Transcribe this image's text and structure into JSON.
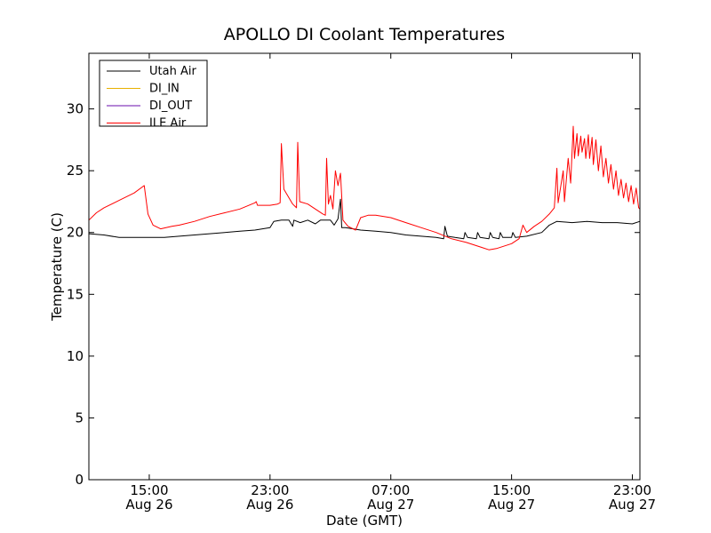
{
  "chart_data": {
    "type": "line",
    "title": "APOLLO DI Coolant Temperatures",
    "xlabel": "Date (GMT)",
    "ylabel": "Temperature (C)",
    "ylim": [
      0,
      34.5
    ],
    "xlim": [
      "2016-08-26T11:00",
      "2016-08-27T23:30"
    ],
    "yticks": [
      0,
      5,
      10,
      15,
      20,
      25,
      30
    ],
    "xticks": [
      {
        "at": "2016-08-26T15:00",
        "time": "15:00",
        "date": "Aug 26"
      },
      {
        "at": "2016-08-26T23:00",
        "time": "23:00",
        "date": "Aug 26"
      },
      {
        "at": "2016-08-27T07:00",
        "time": "07:00",
        "date": "Aug 27"
      },
      {
        "at": "2016-08-27T15:00",
        "time": "15:00",
        "date": "Aug 27"
      },
      {
        "at": "2016-08-27T23:00",
        "time": "23:00",
        "date": "Aug 27"
      }
    ],
    "grid": false,
    "legend_position": "top-left",
    "series": [
      {
        "name": "Utah Air",
        "color": "#000000",
        "points": [
          [
            "2016-08-26T11:00",
            19.9
          ],
          [
            "2016-08-26T12:00",
            19.8
          ],
          [
            "2016-08-26T13:00",
            19.6
          ],
          [
            "2016-08-26T14:00",
            19.6
          ],
          [
            "2016-08-26T15:00",
            19.6
          ],
          [
            "2016-08-26T16:00",
            19.6
          ],
          [
            "2016-08-26T17:00",
            19.7
          ],
          [
            "2016-08-26T18:00",
            19.8
          ],
          [
            "2016-08-26T19:00",
            19.9
          ],
          [
            "2016-08-26T20:00",
            20.0
          ],
          [
            "2016-08-26T21:00",
            20.1
          ],
          [
            "2016-08-26T22:00",
            20.2
          ],
          [
            "2016-08-26T23:00",
            20.4
          ],
          [
            "2016-08-26T23:15",
            20.9
          ],
          [
            "2016-08-26T23:45",
            21.0
          ],
          [
            "2016-08-27T00:15",
            21.0
          ],
          [
            "2016-08-27T00:30",
            20.5
          ],
          [
            "2016-08-27T00:35",
            21.0
          ],
          [
            "2016-08-27T01:00",
            20.8
          ],
          [
            "2016-08-27T01:30",
            21.0
          ],
          [
            "2016-08-27T02:00",
            20.7
          ],
          [
            "2016-08-27T02:20",
            21.0
          ],
          [
            "2016-08-27T03:00",
            21.0
          ],
          [
            "2016-08-27T03:15",
            20.6
          ],
          [
            "2016-08-27T03:30",
            21.1
          ],
          [
            "2016-08-27T03:40",
            22.7
          ],
          [
            "2016-08-27T03:45",
            20.4
          ],
          [
            "2016-08-27T04:00",
            20.4
          ],
          [
            "2016-08-27T05:00",
            20.2
          ],
          [
            "2016-08-27T06:00",
            20.1
          ],
          [
            "2016-08-27T07:00",
            20.0
          ],
          [
            "2016-08-27T08:00",
            19.8
          ],
          [
            "2016-08-27T09:00",
            19.7
          ],
          [
            "2016-08-27T10:00",
            19.6
          ],
          [
            "2016-08-27T10:30",
            19.5
          ],
          [
            "2016-08-27T10:35",
            20.5
          ],
          [
            "2016-08-27T10:45",
            19.7
          ],
          [
            "2016-08-27T11:15",
            19.6
          ],
          [
            "2016-08-27T11:50",
            19.5
          ],
          [
            "2016-08-27T11:55",
            20.0
          ],
          [
            "2016-08-27T12:05",
            19.6
          ],
          [
            "2016-08-27T12:40",
            19.5
          ],
          [
            "2016-08-27T12:45",
            20.0
          ],
          [
            "2016-08-27T12:55",
            19.6
          ],
          [
            "2016-08-27T13:30",
            19.5
          ],
          [
            "2016-08-27T13:35",
            20.0
          ],
          [
            "2016-08-27T13:45",
            19.6
          ],
          [
            "2016-08-27T14:10",
            19.5
          ],
          [
            "2016-08-27T14:15",
            20.0
          ],
          [
            "2016-08-27T14:25",
            19.6
          ],
          [
            "2016-08-27T15:00",
            19.6
          ],
          [
            "2016-08-27T15:05",
            20.0
          ],
          [
            "2016-08-27T15:15",
            19.6
          ],
          [
            "2016-08-27T16:00",
            19.7
          ],
          [
            "2016-08-27T17:00",
            20.0
          ],
          [
            "2016-08-27T17:30",
            20.6
          ],
          [
            "2016-08-27T18:00",
            20.9
          ],
          [
            "2016-08-27T19:00",
            20.8
          ],
          [
            "2016-08-27T20:00",
            20.9
          ],
          [
            "2016-08-27T21:00",
            20.8
          ],
          [
            "2016-08-27T22:00",
            20.8
          ],
          [
            "2016-08-27T23:00",
            20.7
          ],
          [
            "2016-08-27T23:30",
            20.9
          ]
        ]
      },
      {
        "name": "DI_IN",
        "color": "#e8b000",
        "points": []
      },
      {
        "name": "DI_OUT",
        "color": "#6a0dad",
        "points": []
      },
      {
        "name": "ILE Air",
        "color": "#ff0000",
        "points": [
          [
            "2016-08-26T11:00",
            21.0
          ],
          [
            "2016-08-26T11:30",
            21.6
          ],
          [
            "2016-08-26T12:00",
            22.0
          ],
          [
            "2016-08-26T13:00",
            22.6
          ],
          [
            "2016-08-26T14:00",
            23.2
          ],
          [
            "2016-08-26T14:40",
            23.8
          ],
          [
            "2016-08-26T14:55",
            21.5
          ],
          [
            "2016-08-26T15:15",
            20.6
          ],
          [
            "2016-08-26T15:45",
            20.3
          ],
          [
            "2016-08-26T16:30",
            20.5
          ],
          [
            "2016-08-26T17:00",
            20.6
          ],
          [
            "2016-08-26T18:00",
            20.9
          ],
          [
            "2016-08-26T19:00",
            21.3
          ],
          [
            "2016-08-26T20:00",
            21.6
          ],
          [
            "2016-08-26T21:00",
            21.9
          ],
          [
            "2016-08-26T22:00",
            22.4
          ],
          [
            "2016-08-26T22:05",
            22.5
          ],
          [
            "2016-08-26T22:10",
            22.2
          ],
          [
            "2016-08-26T23:00",
            22.2
          ],
          [
            "2016-08-26T23:30",
            22.3
          ],
          [
            "2016-08-26T23:40",
            22.4
          ],
          [
            "2016-08-26T23:45",
            27.2
          ],
          [
            "2016-08-26T23:55",
            23.5
          ],
          [
            "2016-08-27T00:30",
            22.3
          ],
          [
            "2016-08-27T00:45",
            22.0
          ],
          [
            "2016-08-27T00:50",
            27.3
          ],
          [
            "2016-08-27T00:58",
            22.5
          ],
          [
            "2016-08-27T01:30",
            22.3
          ],
          [
            "2016-08-27T02:00",
            21.9
          ],
          [
            "2016-08-27T02:30",
            21.5
          ],
          [
            "2016-08-27T02:40",
            21.4
          ],
          [
            "2016-08-27T02:45",
            26.0
          ],
          [
            "2016-08-27T02:52",
            22.3
          ],
          [
            "2016-08-27T03:00",
            23.0
          ],
          [
            "2016-08-27T03:10",
            21.9
          ],
          [
            "2016-08-27T03:20",
            25.0
          ],
          [
            "2016-08-27T03:30",
            23.8
          ],
          [
            "2016-08-27T03:40",
            24.8
          ],
          [
            "2016-08-27T03:50",
            21.0
          ],
          [
            "2016-08-27T04:10",
            20.5
          ],
          [
            "2016-08-27T04:40",
            20.2
          ],
          [
            "2016-08-27T05:00",
            21.2
          ],
          [
            "2016-08-27T05:30",
            21.4
          ],
          [
            "2016-08-27T06:00",
            21.4
          ],
          [
            "2016-08-27T07:00",
            21.2
          ],
          [
            "2016-08-27T08:00",
            20.8
          ],
          [
            "2016-08-27T09:00",
            20.4
          ],
          [
            "2016-08-27T10:00",
            20.0
          ],
          [
            "2016-08-27T11:00",
            19.5
          ],
          [
            "2016-08-27T12:00",
            19.2
          ],
          [
            "2016-08-27T13:00",
            18.8
          ],
          [
            "2016-08-27T13:30",
            18.6
          ],
          [
            "2016-08-27T14:00",
            18.7
          ],
          [
            "2016-08-27T15:00",
            19.1
          ],
          [
            "2016-08-27T15:30",
            19.5
          ],
          [
            "2016-08-27T15:45",
            20.6
          ],
          [
            "2016-08-27T16:00",
            20.0
          ],
          [
            "2016-08-27T16:30",
            20.5
          ],
          [
            "2016-08-27T17:00",
            20.9
          ],
          [
            "2016-08-27T17:30",
            21.5
          ],
          [
            "2016-08-27T17:50",
            22.0
          ],
          [
            "2016-08-27T18:00",
            25.2
          ],
          [
            "2016-08-27T18:05",
            22.4
          ],
          [
            "2016-08-27T18:25",
            25.0
          ],
          [
            "2016-08-27T18:30",
            22.5
          ],
          [
            "2016-08-27T18:45",
            26.0
          ],
          [
            "2016-08-27T18:55",
            24.0
          ],
          [
            "2016-08-27T19:05",
            28.6
          ],
          [
            "2016-08-27T19:10",
            26.0
          ],
          [
            "2016-08-27T19:20",
            28.0
          ],
          [
            "2016-08-27T19:25",
            26.2
          ],
          [
            "2016-08-27T19:35",
            27.8
          ],
          [
            "2016-08-27T19:40",
            26.5
          ],
          [
            "2016-08-27T19:50",
            27.6
          ],
          [
            "2016-08-27T19:55",
            26.0
          ],
          [
            "2016-08-27T20:05",
            27.9
          ],
          [
            "2016-08-27T20:10",
            26.0
          ],
          [
            "2016-08-27T20:20",
            27.7
          ],
          [
            "2016-08-27T20:25",
            25.5
          ],
          [
            "2016-08-27T20:35",
            27.5
          ],
          [
            "2016-08-27T20:45",
            25.0
          ],
          [
            "2016-08-27T20:55",
            27.0
          ],
          [
            "2016-08-27T21:05",
            24.5
          ],
          [
            "2016-08-27T21:15",
            26.0
          ],
          [
            "2016-08-27T21:25",
            24.0
          ],
          [
            "2016-08-27T21:35",
            25.5
          ],
          [
            "2016-08-27T21:45",
            23.5
          ],
          [
            "2016-08-27T21:55",
            25.0
          ],
          [
            "2016-08-27T22:05",
            23.0
          ],
          [
            "2016-08-27T22:15",
            24.3
          ],
          [
            "2016-08-27T22:25",
            22.8
          ],
          [
            "2016-08-27T22:35",
            24.0
          ],
          [
            "2016-08-27T22:45",
            22.5
          ],
          [
            "2016-08-27T22:55",
            23.8
          ],
          [
            "2016-08-27T23:05",
            22.3
          ],
          [
            "2016-08-27T23:15",
            23.6
          ],
          [
            "2016-08-27T23:25",
            22.0
          ],
          [
            "2016-08-27T23:30",
            21.9
          ]
        ]
      }
    ]
  }
}
